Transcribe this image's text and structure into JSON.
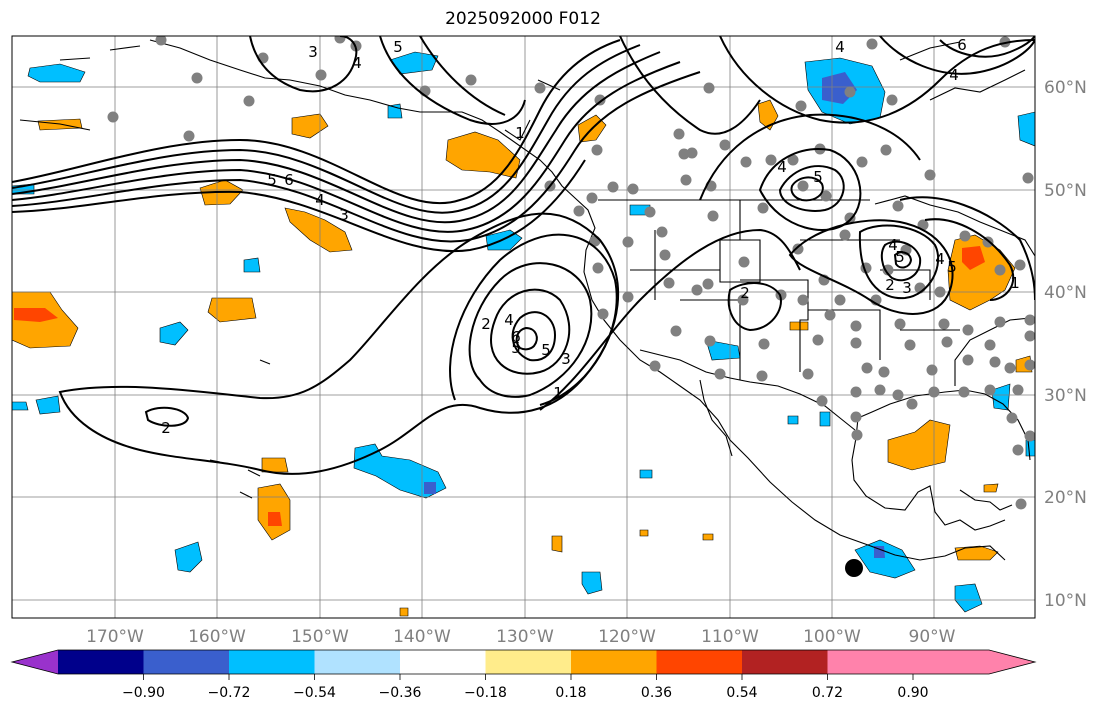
{
  "title": "2025092000 F012",
  "longitude_labels": [
    "170°W",
    "160°W",
    "150°W",
    "140°W",
    "130°W",
    "120°W",
    "110°W",
    "100°W",
    "90°W"
  ],
  "latitude_labels": [
    "60°N",
    "50°N",
    "40°N",
    "30°N",
    "20°N",
    "10°N"
  ],
  "contour_labels": [
    "3",
    "4",
    "5",
    "5",
    "6",
    "4",
    "3",
    "2",
    "4",
    "5",
    "6",
    "5",
    "3",
    "1",
    "2",
    "1",
    "2",
    "4",
    "5",
    "4",
    "5",
    "4",
    "5",
    "2",
    "3",
    "1",
    "4",
    "4",
    "6"
  ],
  "colorbar": {
    "ticks": [
      "−0.90",
      "−0.72",
      "−0.54",
      "−0.36",
      "−0.18",
      "0.18",
      "0.36",
      "0.54",
      "0.72",
      "0.90"
    ],
    "colors": [
      "#9932cc",
      "#00008b",
      "#3a5fcd",
      "#00bfff",
      "#b0e2ff",
      "#ffffff",
      "#ffec8b",
      "#ffa500",
      "#ff4500",
      "#b22222",
      "#ff82ab"
    ]
  }
}
